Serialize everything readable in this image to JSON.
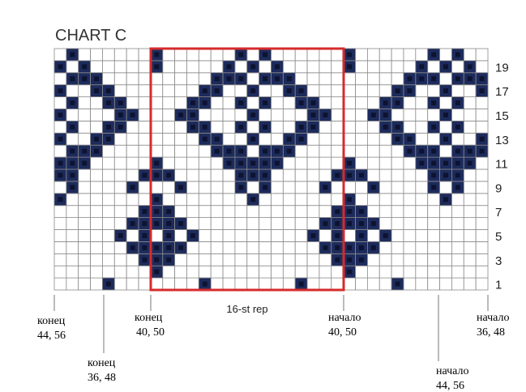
{
  "title": "CHART C",
  "repeat_label": "16-st rep",
  "columns": 36,
  "rows": 20,
  "row_labels": [
    1,
    3,
    5,
    7,
    9,
    11,
    13,
    15,
    17,
    19
  ],
  "cells": [
    [
      4,
      12,
      20,
      28
    ],
    [
      8,
      24
    ],
    [
      7,
      8,
      9,
      23,
      24,
      25
    ],
    [
      6,
      7,
      8,
      9,
      10,
      22,
      23,
      24,
      25,
      26
    ],
    [
      5,
      7,
      9,
      11,
      21,
      23,
      25,
      27
    ],
    [
      6,
      7,
      8,
      9,
      10,
      22,
      23,
      24,
      25,
      26
    ],
    [
      7,
      8,
      9,
      23,
      24,
      25
    ],
    [
      0,
      8,
      16,
      24,
      32
    ],
    [
      1,
      6,
      10,
      15,
      17,
      22,
      26,
      31,
      33
    ],
    [
      0,
      1,
      7,
      8,
      9,
      15,
      16,
      17,
      23,
      24,
      25,
      31,
      32,
      33
    ],
    [
      0,
      1,
      2,
      8,
      14,
      15,
      16,
      17,
      18,
      24,
      30,
      31,
      32,
      33,
      34
    ],
    [
      1,
      2,
      3,
      13,
      14,
      15,
      17,
      18,
      19,
      29,
      30,
      31,
      33,
      34,
      35
    ],
    [
      0,
      3,
      4,
      12,
      13,
      16,
      19,
      20,
      28,
      29,
      32,
      35
    ],
    [
      1,
      4,
      5,
      11,
      12,
      15,
      17,
      20,
      21,
      27,
      28,
      31,
      33
    ],
    [
      0,
      5,
      6,
      10,
      11,
      16,
      21,
      22,
      26,
      27,
      32
    ],
    [
      1,
      4,
      5,
      11,
      12,
      15,
      17,
      20,
      21,
      27,
      28,
      31,
      33
    ],
    [
      0,
      3,
      4,
      12,
      13,
      16,
      19,
      20,
      28,
      29,
      32,
      35
    ],
    [
      1,
      2,
      3,
      13,
      14,
      15,
      17,
      18,
      19,
      29,
      30,
      31,
      33,
      34,
      35
    ],
    [
      0,
      2,
      8,
      14,
      16,
      18,
      24,
      30,
      32,
      34
    ],
    [
      1,
      8,
      15,
      17,
      24,
      31,
      33
    ]
  ],
  "annotations": [
    {
      "line1": "конец",
      "line2": "44, 56"
    },
    {
      "line1": "конец",
      "line2": "36, 48"
    },
    {
      "line1": "конец",
      "line2": "40, 50"
    },
    {
      "line1": "начало",
      "line2": "40, 50"
    },
    {
      "line1": "начало",
      "line2": "36, 48"
    },
    {
      "line1": "начало",
      "line2": "44, 56"
    }
  ]
}
